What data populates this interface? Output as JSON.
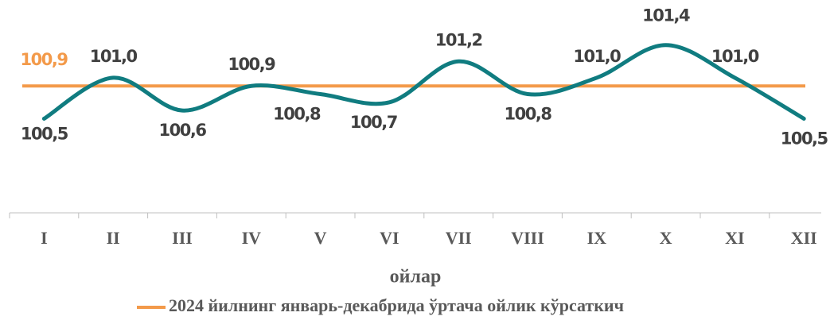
{
  "chart_data": {
    "type": "line",
    "categories": [
      "I",
      "II",
      "III",
      "IV",
      "V",
      "VI",
      "VII",
      "VIII",
      "IX",
      "X",
      "XI",
      "XII"
    ],
    "series": [
      {
        "values": [
          100.5,
          101.0,
          100.6,
          100.9,
          100.8,
          100.7,
          101.2,
          100.8,
          101.0,
          101.4,
          101.0,
          100.5
        ],
        "value_labels": [
          "100,5",
          "101,0",
          "100,6",
          "100,9",
          "100,8",
          "100,7",
          "101,2",
          "100,8",
          "101,0",
          "101,4",
          "101,0",
          "100,5"
        ],
        "color": "#107c80"
      }
    ],
    "reference": {
      "name": "2024 йилнинг январь-декабрида ўртача ойлик кўрсаткич",
      "value": 100.9,
      "value_label": "100,9",
      "color": "#f39a4a"
    },
    "xlabel": "ойлар",
    "ylim": [
      99.35,
      101.95
    ]
  }
}
